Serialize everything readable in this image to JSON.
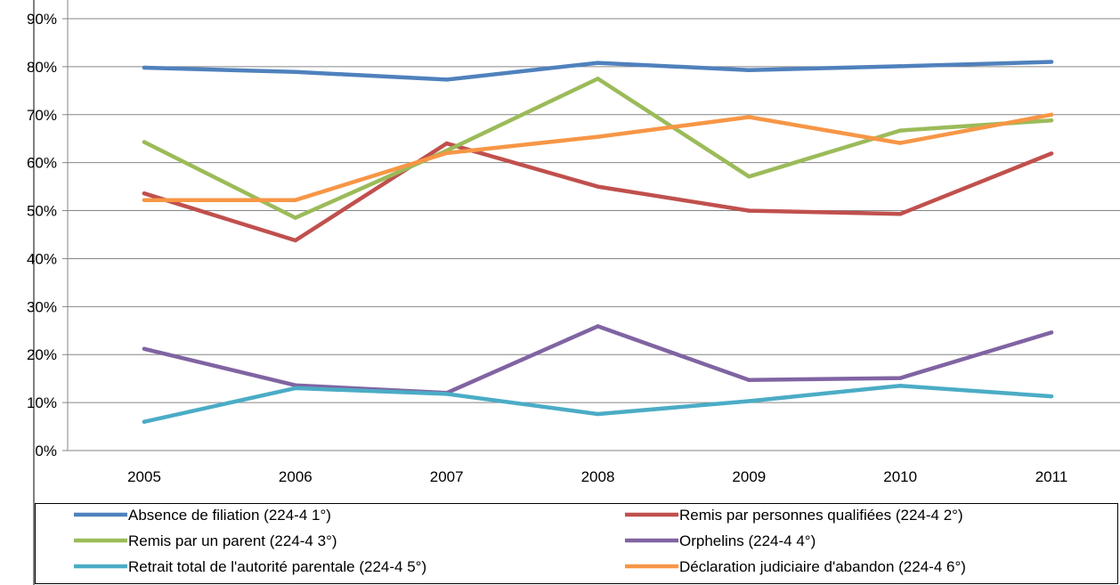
{
  "chart_data": {
    "type": "line",
    "x": [
      "2005",
      "2006",
      "2007",
      "2008",
      "2009",
      "2010",
      "2011"
    ],
    "ylim": [
      0,
      90
    ],
    "y_ticks": [
      "0%",
      "10%",
      "20%",
      "30%",
      "40%",
      "50%",
      "60%",
      "70%",
      "80%",
      "90%"
    ],
    "y_tick_values": [
      0,
      10,
      20,
      30,
      40,
      50,
      60,
      70,
      80,
      90
    ],
    "grid": true,
    "legend_position": "bottom",
    "series": [
      {
        "name": "Absence de filiation (224-4 1°)",
        "color": "#4F81BD",
        "values": [
          79.8,
          78.9,
          77.3,
          80.8,
          79.3,
          80.1,
          81.0
        ]
      },
      {
        "name": "Remis par personnes qualifiées (224-4 2°)",
        "color": "#C0504D",
        "values": [
          53.6,
          43.8,
          64.0,
          55.0,
          50.0,
          49.3,
          61.9
        ]
      },
      {
        "name": "Remis par un parent   (224-4 3°)",
        "color": "#9BBB59",
        "values": [
          64.3,
          48.5,
          62.5,
          77.5,
          57.1,
          66.7,
          68.8
        ]
      },
      {
        "name": "Orphelins (224-4 4°)",
        "color": "#8064A2",
        "values": [
          21.2,
          13.6,
          12.0,
          25.9,
          14.7,
          15.1,
          24.6
        ]
      },
      {
        "name": "Retrait total de l'autorité parentale   (224-4 5°)",
        "color": "#4BACC6",
        "values": [
          6.0,
          13.0,
          11.8,
          7.6,
          10.3,
          13.5,
          11.3
        ]
      },
      {
        "name": "Déclaration judiciaire d'abandon (224-4 6°)",
        "color": "#F79646",
        "values": [
          52.2,
          52.2,
          62.0,
          65.4,
          69.5,
          64.1,
          70.0
        ]
      }
    ]
  }
}
